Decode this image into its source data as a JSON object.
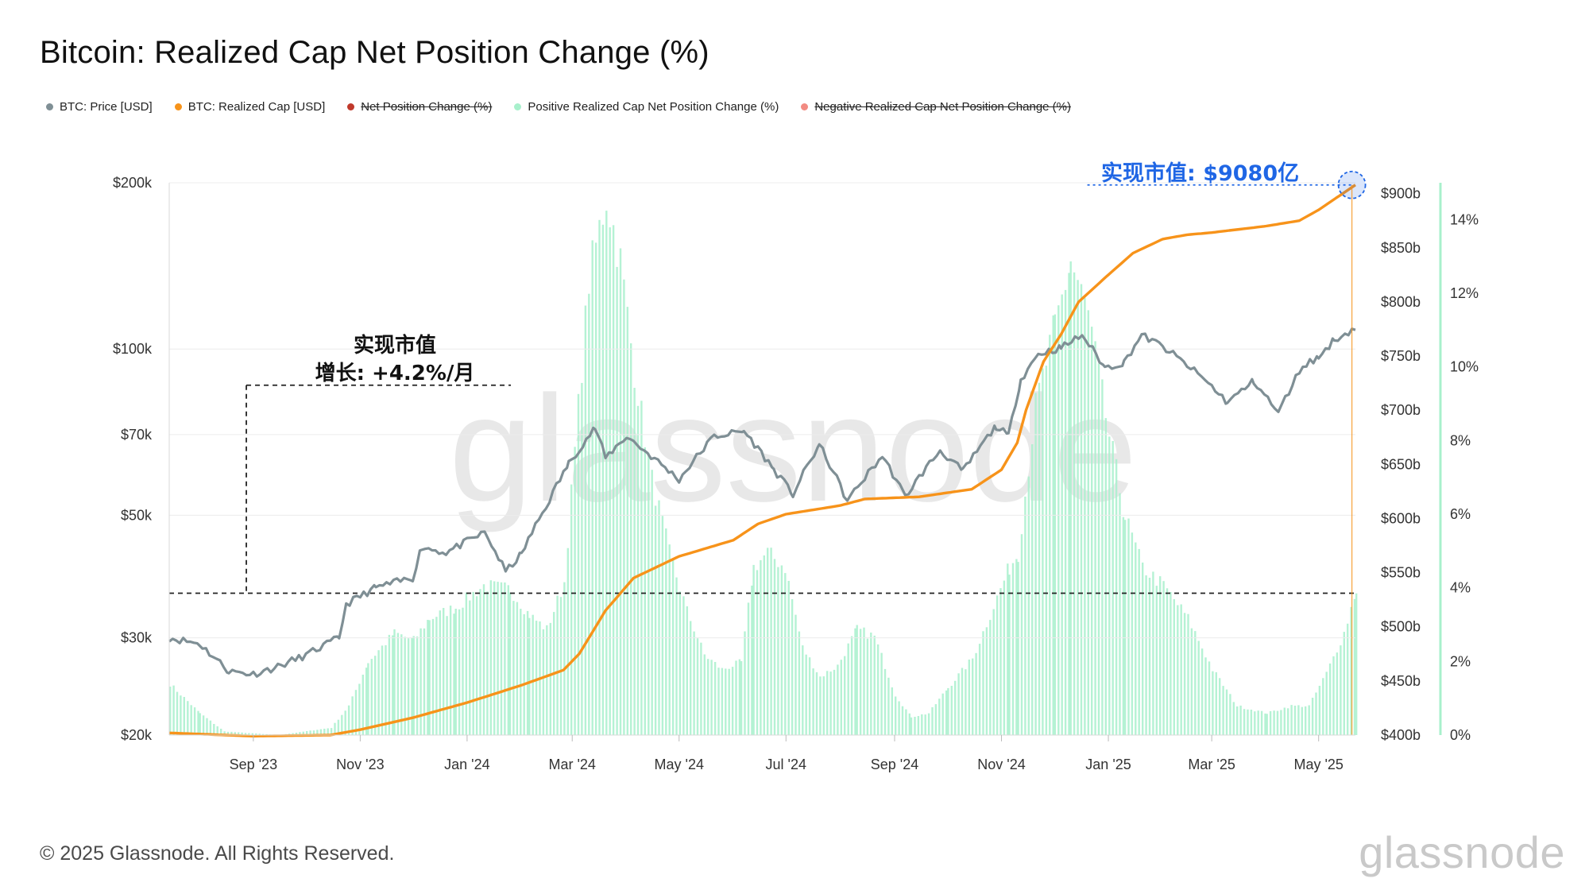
{
  "title": "Bitcoin: Realized Cap Net Position Change (%)",
  "legend": [
    {
      "label": "BTC: Price [USD]",
      "color": "#7f8f95",
      "active": true
    },
    {
      "label": "BTC: Realized Cap [USD]",
      "color": "#f7931a",
      "active": true
    },
    {
      "label": "Net Position Change (%)",
      "color": "#c0392b",
      "active": false
    },
    {
      "label": "Positive Realized Cap Net Position Change (%)",
      "color": "#a8f0cc",
      "active": true
    },
    {
      "label": "Negative Realized Cap Net Position Change (%)",
      "color": "#f28b82",
      "active": false
    }
  ],
  "annotations": {
    "growth_line1": "实现市值",
    "growth_line2": "增长: +4.2%/月",
    "realized_cap_label": "实现市值: $9080亿"
  },
  "footer": "© 2025 Glassnode. All Rights Reserved.",
  "brand": "glassnode",
  "watermark": "glassnode",
  "chart_data": {
    "type": "line",
    "x_ticks": [
      "Sep '23",
      "Nov '23",
      "Jan '24",
      "Mar '24",
      "May '24",
      "Jul '24",
      "Sep '24",
      "Nov '24",
      "Jan '25",
      "Mar '25",
      "May '25"
    ],
    "x_range": [
      "2023-07-15",
      "2025-05-22"
    ],
    "left_axis": {
      "scale": "log",
      "ticks": [
        "$20k",
        "$30k",
        "$50k",
        "$70k",
        "$100k",
        "$200k"
      ],
      "tick_values": [
        20000,
        30000,
        50000,
        70000,
        100000,
        200000
      ],
      "ylim": [
        20000,
        200000
      ]
    },
    "right_axis_1": {
      "ticks": [
        "$400b",
        "$450b",
        "$500b",
        "$550b",
        "$600b",
        "$650b",
        "$700b",
        "$750b",
        "$800b",
        "$850b",
        "$900b"
      ],
      "tick_values": [
        400,
        450,
        500,
        550,
        600,
        650,
        700,
        750,
        800,
        850,
        900
      ],
      "ylim": [
        400,
        910
      ],
      "unit": "b USD"
    },
    "right_axis_2": {
      "ticks": [
        "0%",
        "2%",
        "4%",
        "6%",
        "8%",
        "10%",
        "12%",
        "14%"
      ],
      "tick_values": [
        0,
        2,
        4,
        6,
        8,
        10,
        12,
        14
      ],
      "ylim": [
        0,
        15
      ],
      "unit": "%"
    },
    "series": [
      {
        "name": "BTC: Price [USD]",
        "axis": "left",
        "color": "#7f8f95",
        "points": [
          [
            "2023-07-15",
            30000
          ],
          [
            "2023-08-01",
            29300
          ],
          [
            "2023-08-18",
            26100
          ],
          [
            "2023-09-01",
            25800
          ],
          [
            "2023-09-15",
            26600
          ],
          [
            "2023-10-01",
            27900
          ],
          [
            "2023-10-20",
            30000
          ],
          [
            "2023-10-24",
            34500
          ],
          [
            "2023-11-10",
            37000
          ],
          [
            "2023-12-01",
            38500
          ],
          [
            "2023-12-06",
            43800
          ],
          [
            "2023-12-20",
            42800
          ],
          [
            "2024-01-11",
            46500
          ],
          [
            "2024-01-23",
            39500
          ],
          [
            "2024-02-01",
            42500
          ],
          [
            "2024-02-15",
            51800
          ],
          [
            "2024-02-28",
            62000
          ],
          [
            "2024-03-14",
            72000
          ],
          [
            "2024-03-20",
            63500
          ],
          [
            "2024-04-01",
            69500
          ],
          [
            "2024-04-15",
            64000
          ],
          [
            "2024-05-01",
            58000
          ],
          [
            "2024-05-21",
            69500
          ],
          [
            "2024-06-07",
            71000
          ],
          [
            "2024-06-24",
            60500
          ],
          [
            "2024-07-05",
            54500
          ],
          [
            "2024-07-20",
            67000
          ],
          [
            "2024-08-05",
            53000
          ],
          [
            "2024-08-25",
            64000
          ],
          [
            "2024-09-07",
            54000
          ],
          [
            "2024-09-27",
            65500
          ],
          [
            "2024-10-10",
            60000
          ],
          [
            "2024-10-29",
            72500
          ],
          [
            "2024-11-05",
            69500
          ],
          [
            "2024-11-12",
            88000
          ],
          [
            "2024-11-22",
            98000
          ],
          [
            "2024-12-05",
            100500
          ],
          [
            "2024-12-17",
            106000
          ],
          [
            "2024-12-30",
            92500
          ],
          [
            "2025-01-10",
            94500
          ],
          [
            "2025-01-20",
            106000
          ],
          [
            "2025-02-01",
            101000
          ],
          [
            "2025-02-25",
            88000
          ],
          [
            "2025-03-10",
            80000
          ],
          [
            "2025-03-25",
            87500
          ],
          [
            "2025-04-08",
            76500
          ],
          [
            "2025-04-22",
            93500
          ],
          [
            "2025-05-01",
            96500
          ],
          [
            "2025-05-10",
            104000
          ],
          [
            "2025-05-22",
            109000
          ]
        ]
      },
      {
        "name": "BTC: Realized Cap [USD]",
        "axis": "right_1",
        "color": "#f7931a",
        "unit": "b",
        "points": [
          [
            "2023-07-15",
            402
          ],
          [
            "2023-09-01",
            399
          ],
          [
            "2023-10-15",
            400
          ],
          [
            "2023-11-01",
            405
          ],
          [
            "2023-12-01",
            416
          ],
          [
            "2024-01-01",
            430
          ],
          [
            "2024-02-01",
            446
          ],
          [
            "2024-02-25",
            460
          ],
          [
            "2024-03-05",
            475
          ],
          [
            "2024-03-20",
            515
          ],
          [
            "2024-04-05",
            545
          ],
          [
            "2024-05-01",
            565
          ],
          [
            "2024-06-01",
            580
          ],
          [
            "2024-06-15",
            595
          ],
          [
            "2024-07-01",
            604
          ],
          [
            "2024-08-01",
            612
          ],
          [
            "2024-08-15",
            618
          ],
          [
            "2024-09-15",
            620
          ],
          [
            "2024-10-15",
            627
          ],
          [
            "2024-11-01",
            645
          ],
          [
            "2024-11-10",
            670
          ],
          [
            "2024-11-15",
            700
          ],
          [
            "2024-11-25",
            745
          ],
          [
            "2024-12-05",
            770
          ],
          [
            "2024-12-15",
            800
          ],
          [
            "2025-01-01",
            825
          ],
          [
            "2025-01-15",
            845
          ],
          [
            "2025-02-01",
            858
          ],
          [
            "2025-02-15",
            862
          ],
          [
            "2025-03-01",
            864
          ],
          [
            "2025-04-01",
            870
          ],
          [
            "2025-04-20",
            875
          ],
          [
            "2025-05-01",
            885
          ],
          [
            "2025-05-22",
            908
          ]
        ]
      },
      {
        "name": "Positive Realized Cap Net Position Change (%)",
        "axis": "right_2",
        "type": "area",
        "color": "#a8f0cc",
        "points": [
          [
            "2023-07-15",
            1.4
          ],
          [
            "2023-08-01",
            0.6
          ],
          [
            "2023-08-15",
            0.1
          ],
          [
            "2023-09-15",
            0.0
          ],
          [
            "2023-10-15",
            0.2
          ],
          [
            "2023-10-25",
            0.8
          ],
          [
            "2023-11-05",
            2.0
          ],
          [
            "2023-11-20",
            2.8
          ],
          [
            "2023-12-01",
            2.6
          ],
          [
            "2023-12-10",
            3.2
          ],
          [
            "2023-12-25",
            3.5
          ],
          [
            "2024-01-10",
            4.1
          ],
          [
            "2024-01-25",
            4.0
          ],
          [
            "2024-02-05",
            3.3
          ],
          [
            "2024-02-15",
            2.9
          ],
          [
            "2024-02-25",
            4.2
          ],
          [
            "2024-03-02",
            7.8
          ],
          [
            "2024-03-10",
            12.5
          ],
          [
            "2024-03-20",
            14.8
          ],
          [
            "2024-03-28",
            13.0
          ],
          [
            "2024-04-05",
            10.0
          ],
          [
            "2024-04-15",
            7.0
          ],
          [
            "2024-04-25",
            5.0
          ],
          [
            "2024-05-05",
            3.4
          ],
          [
            "2024-05-15",
            2.2
          ],
          [
            "2024-05-25",
            1.8
          ],
          [
            "2024-06-05",
            2.0
          ],
          [
            "2024-06-12",
            4.6
          ],
          [
            "2024-06-20",
            5.0
          ],
          [
            "2024-06-30",
            4.6
          ],
          [
            "2024-07-10",
            2.4
          ],
          [
            "2024-07-20",
            1.6
          ],
          [
            "2024-07-30",
            1.9
          ],
          [
            "2024-08-10",
            2.9
          ],
          [
            "2024-08-20",
            2.7
          ],
          [
            "2024-09-01",
            1.1
          ],
          [
            "2024-09-10",
            0.5
          ],
          [
            "2024-09-20",
            0.6
          ],
          [
            "2024-10-01",
            1.3
          ],
          [
            "2024-10-15",
            2.1
          ],
          [
            "2024-10-25",
            3.3
          ],
          [
            "2024-11-05",
            4.6
          ],
          [
            "2024-11-10",
            5.0
          ],
          [
            "2024-11-20",
            9.0
          ],
          [
            "2024-12-01",
            11.2
          ],
          [
            "2024-12-10",
            13.0
          ],
          [
            "2024-12-20",
            11.5
          ],
          [
            "2025-01-01",
            8.2
          ],
          [
            "2025-01-10",
            6.0
          ],
          [
            "2025-01-20",
            4.6
          ],
          [
            "2025-02-01",
            4.1
          ],
          [
            "2025-02-15",
            3.2
          ],
          [
            "2025-03-01",
            1.8
          ],
          [
            "2025-03-15",
            0.8
          ],
          [
            "2025-04-01",
            0.6
          ],
          [
            "2025-04-15",
            0.8
          ],
          [
            "2025-04-25",
            0.8
          ],
          [
            "2025-05-05",
            1.7
          ],
          [
            "2025-05-15",
            2.8
          ],
          [
            "2025-05-22",
            4.0
          ]
        ]
      }
    ],
    "reference_lines": [
      {
        "axis": "right_1",
        "value": 531,
        "style": "dashed",
        "color": "#222"
      },
      {
        "axis": "left",
        "value": 86000,
        "from": "2023-08-28",
        "to": "2024-01-26",
        "style": "dashed",
        "color": "#222"
      },
      {
        "axis": "right_1",
        "value": 908,
        "from": "2024-12-20",
        "to": "2025-05-20",
        "style": "dotted",
        "color": "#1f66e5"
      }
    ],
    "highlight_point": {
      "series": "BTC: Realized Cap [USD]",
      "x": "2025-05-20",
      "y": 908
    }
  }
}
